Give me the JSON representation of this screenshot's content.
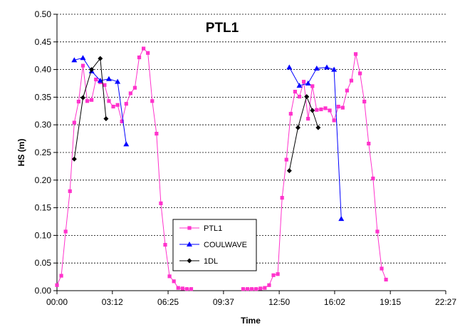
{
  "chart_data": {
    "type": "line",
    "title": "PTL1",
    "xlabel": "Time",
    "ylabel": "HS (m)",
    "xlim": [
      "00:00",
      "22:27"
    ],
    "ylim": [
      0,
      0.5
    ],
    "x_ticks": [
      "00:00",
      "03:12",
      "06:25",
      "09:37",
      "12:50",
      "16:02",
      "19:15",
      "22:27"
    ],
    "y_ticks": [
      "0.00",
      "0.05",
      "0.10",
      "0.15",
      "0.20",
      "0.25",
      "0.30",
      "0.35",
      "0.40",
      "0.45",
      "0.50"
    ],
    "grid": "horizontal dashed",
    "legend_position": "bottom-center",
    "series": [
      {
        "name": "PTL1",
        "color": "#ff33cc",
        "marker": "square",
        "segments": [
          {
            "x": [
              "00:00",
              "00:15",
              "00:30",
              "00:45",
              "01:00",
              "01:15",
              "01:30",
              "01:45",
              "02:00",
              "02:15",
              "02:30",
              "02:45",
              "03:00",
              "03:15",
              "03:30",
              "03:45",
              "04:00",
              "04:15",
              "04:30",
              "04:45",
              "05:00",
              "05:15",
              "05:30",
              "05:45",
              "06:00",
              "06:15",
              "06:30",
              "06:45",
              "07:00",
              "07:15",
              "07:30",
              "07:45"
            ],
            "y": [
              0.01,
              0.027,
              0.107,
              0.18,
              0.304,
              0.342,
              0.407,
              0.343,
              0.345,
              0.382,
              0.377,
              0.372,
              0.343,
              0.333,
              0.336,
              0.306,
              0.338,
              0.357,
              0.367,
              0.422,
              0.438,
              0.43,
              0.343,
              0.284,
              0.158,
              0.083,
              0.026,
              0.017,
              0.005,
              0.004,
              0.003,
              0.003
            ]
          },
          {
            "x": [
              "10:45",
              "11:00",
              "11:15",
              "11:30",
              "11:45",
              "12:00",
              "12:15",
              "12:30",
              "12:45",
              "13:00",
              "13:15",
              "13:30",
              "13:45",
              "14:00",
              "14:15",
              "14:30",
              "14:45",
              "15:00",
              "15:15",
              "15:30",
              "15:45",
              "16:00",
              "16:15",
              "16:30",
              "16:45",
              "17:00",
              "17:15",
              "17:30",
              "17:45",
              "18:00",
              "18:15",
              "18:30",
              "18:45",
              "19:00"
            ],
            "y": [
              0.003,
              0.003,
              0.003,
              0.003,
              0.004,
              0.005,
              0.01,
              0.028,
              0.03,
              0.168,
              0.237,
              0.32,
              0.36,
              0.351,
              0.378,
              0.311,
              0.37,
              0.327,
              0.328,
              0.33,
              0.326,
              0.308,
              0.333,
              0.331,
              0.362,
              0.38,
              0.428,
              0.393,
              0.342,
              0.266,
              0.203,
              0.107,
              0.04,
              0.02
            ]
          }
        ]
      },
      {
        "name": "COULWAVE",
        "color": "#0000ff",
        "marker": "triangle",
        "segments": [
          {
            "x": [
              "01:00",
              "01:30",
              "02:00",
              "02:30",
              "03:00",
              "03:30",
              "04:00"
            ],
            "y": [
              0.417,
              0.421,
              0.397,
              0.38,
              0.383,
              0.378,
              0.265
            ]
          },
          {
            "x": [
              "13:25",
              "14:00",
              "14:30",
              "15:00",
              "15:35",
              "16:00",
              "16:25"
            ],
            "y": [
              0.404,
              0.371,
              0.375,
              0.402,
              0.404,
              0.4,
              0.13
            ]
          }
        ]
      },
      {
        "name": "1DL",
        "color": "#000000",
        "marker": "diamond",
        "segments": [
          {
            "x": [
              "01:00",
              "01:30",
              "02:00",
              "02:30",
              "02:50"
            ],
            "y": [
              0.238,
              0.349,
              0.4,
              0.42,
              0.311
            ]
          },
          {
            "x": [
              "13:25",
              "13:55",
              "14:25",
              "14:45",
              "15:05"
            ],
            "y": [
              0.217,
              0.295,
              0.351,
              0.326,
              0.295
            ]
          }
        ]
      }
    ]
  }
}
